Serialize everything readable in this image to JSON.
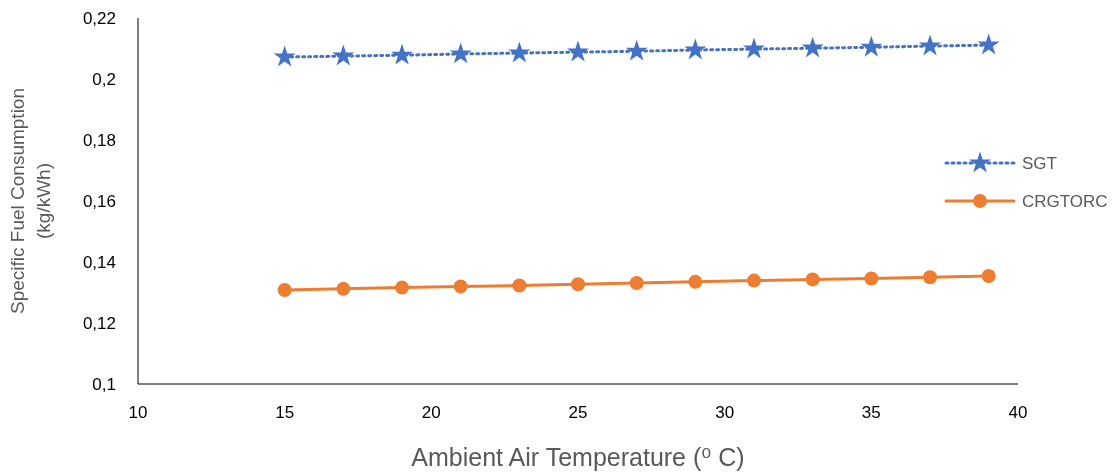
{
  "chart_data": {
    "type": "line",
    "xlabel": "Ambient Air Temperature (⁰ C)",
    "ylabel": "Specific Fuel Consumption (kg/kWh)",
    "x": [
      15,
      17,
      19,
      21,
      23,
      25,
      27,
      29,
      31,
      33,
      35,
      37,
      39
    ],
    "series": [
      {
        "name": "SGT",
        "color": "#4472c4",
        "marker": "star",
        "line_style": "dotted",
        "values": [
          0.2072,
          0.2075,
          0.2078,
          0.2082,
          0.2085,
          0.2088,
          0.2091,
          0.2095,
          0.2098,
          0.2101,
          0.2104,
          0.2108,
          0.2111
        ]
      },
      {
        "name": "CRGTORC",
        "color": "#ed7d31",
        "marker": "circle",
        "line_style": "solid",
        "values": [
          0.1308,
          0.1312,
          0.1316,
          0.132,
          0.1323,
          0.1327,
          0.1331,
          0.1335,
          0.1339,
          0.1343,
          0.1346,
          0.135,
          0.1354
        ]
      }
    ],
    "xlim": [
      10,
      40
    ],
    "xticks": [
      10,
      15,
      20,
      25,
      30,
      35,
      40
    ],
    "ylim": [
      0.1,
      0.22
    ],
    "yticks": [
      {
        "value": 0.1,
        "label": "0,1"
      },
      {
        "value": 0.12,
        "label": "0,12"
      },
      {
        "value": 0.14,
        "label": "0,14"
      },
      {
        "value": 0.16,
        "label": "0,16"
      },
      {
        "value": 0.18,
        "label": "0,18"
      },
      {
        "value": 0.2,
        "label": "0,2"
      },
      {
        "value": 0.22,
        "label": "0,22"
      }
    ],
    "grid": false,
    "legend": "right"
  }
}
